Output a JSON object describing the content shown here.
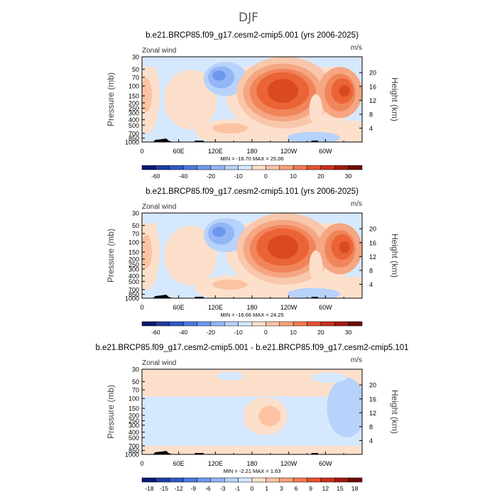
{
  "figure": {
    "title": "DJF"
  },
  "chart_data": [
    {
      "type": "heatmap",
      "title": "b.e21.BRCP85.f09_g17.cesm2-cmip5.001 (yrs 2006-2025)",
      "left_label": "Zonal wind",
      "units": "m/s",
      "ylabel": "Pressure (mb)",
      "y2label": "Height (km)",
      "x_ticks": [
        "0",
        "60E",
        "120E",
        "180",
        "120W",
        "60W"
      ],
      "y_ticks": [
        "30",
        "50",
        "70",
        "100",
        "150",
        "200",
        "250",
        "300",
        "400",
        "500",
        "700",
        "850",
        "1000"
      ],
      "y2_ticks": [
        "20",
        "16",
        "12",
        "8",
        "4"
      ],
      "stats": "MIN = -16.70   MAX =  25.06",
      "colorbar_labels": [
        "-60",
        "-40",
        "-20",
        "-10",
        "0",
        "10",
        "20",
        "30"
      ],
      "min": -16.7,
      "max": 25.06
    },
    {
      "type": "heatmap",
      "title": "b.e21.BRCP85.f09_g17.cesm2-cmip5.101 (yrs 2006-2025)",
      "left_label": "Zonal wind",
      "units": "m/s",
      "ylabel": "Pressure (mb)",
      "y2label": "Height (km)",
      "x_ticks": [
        "0",
        "60E",
        "120E",
        "180",
        "120W",
        "60W"
      ],
      "y_ticks": [
        "30",
        "50",
        "70",
        "100",
        "150",
        "200",
        "250",
        "300",
        "400",
        "500",
        "700",
        "850",
        "1000"
      ],
      "y2_ticks": [
        "20",
        "16",
        "12",
        "8",
        "4"
      ],
      "stats": "MIN = -16.66   MAX =  24.25",
      "colorbar_labels": [
        "-60",
        "-40",
        "-20",
        "-10",
        "0",
        "10",
        "20",
        "30"
      ],
      "min": -16.66,
      "max": 24.25
    },
    {
      "type": "heatmap",
      "title": "b.e21.BRCP85.f09_g17.cesm2-cmip5.001 - b.e21.BRCP85.f09_g17.cesm2-cmip5.101",
      "left_label": "Zonal wind",
      "units": "m/s",
      "ylabel": "Pressure (mb)",
      "y2label": "Height (km)",
      "x_ticks": [
        "0",
        "60E",
        "120E",
        "180",
        "120W",
        "60W"
      ],
      "y_ticks": [
        "30",
        "50",
        "70",
        "100",
        "150",
        "200",
        "250",
        "300",
        "400",
        "500",
        "700",
        "850",
        "1000"
      ],
      "y2_ticks": [
        "20",
        "16",
        "12",
        "8",
        "4"
      ],
      "stats": "MIN = -2.21   MAX =  1.63",
      "colorbar_labels": [
        "-18",
        "-15",
        "-12",
        "-9",
        "-6",
        "-3",
        "-1",
        "0",
        "1",
        "3",
        "6",
        "9",
        "12",
        "15",
        "18"
      ],
      "min": -2.21,
      "max": 1.63
    }
  ]
}
